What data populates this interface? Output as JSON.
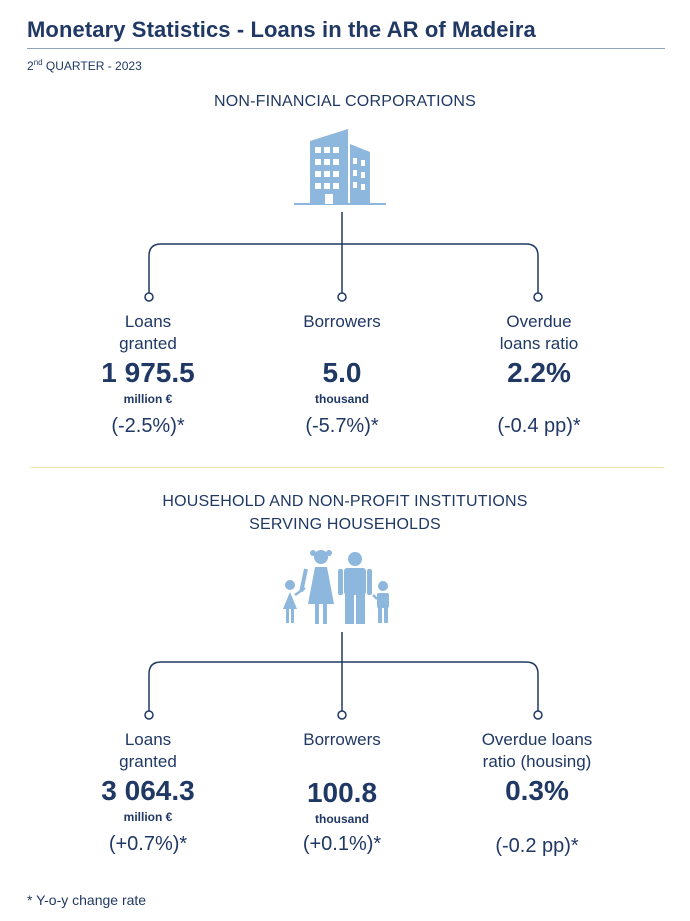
{
  "header": {
    "title": "Monetary Statistics - Loans in the AR of Madeira",
    "subtitle_prefix": "2",
    "subtitle_sup": "nd",
    "subtitle_rest": " QUARTER - 2023"
  },
  "sections": [
    {
      "heading_line1": "NON-FINANCIAL CORPORATIONS",
      "heading_line2": "",
      "icon": "office-building-icon",
      "metrics": [
        {
          "label_line1": "Loans",
          "label_line2": "granted",
          "value": "1 975.5",
          "unit": "million €",
          "change": "(-2.5%)*"
        },
        {
          "label_line1": "Borrowers",
          "label_line2": "",
          "value": "5.0",
          "unit": "thousand",
          "change": "(-5.7%)*"
        },
        {
          "label_line1": "Overdue",
          "label_line2": "loans ratio",
          "value": "2.2%",
          "unit": "",
          "change": "(-0.4 pp)*"
        }
      ]
    },
    {
      "heading_line1": "HOUSEHOLD AND NON-PROFIT INSTITUTIONS",
      "heading_line2": "SERVING HOUSEHOLDS",
      "icon": "family-icon",
      "metrics": [
        {
          "label_line1": "Loans",
          "label_line2": "granted",
          "value": "3 064.3",
          "unit": "million €",
          "change": "(+0.7%)*"
        },
        {
          "label_line1": "Borrowers",
          "label_line2": "",
          "value": "100.8",
          "unit": "thousand",
          "change": "(+0.1%)*"
        },
        {
          "label_line1": "Overdue loans",
          "label_line2": "ratio (housing)",
          "value": "0.3%",
          "unit": "",
          "change": "(-0.2 pp)*"
        }
      ]
    }
  ],
  "footnote": "* Y-o-y change rate",
  "colors": {
    "navy": "#203864",
    "icon_blue": "#8db7dc",
    "divider": "#f2e4a8"
  }
}
